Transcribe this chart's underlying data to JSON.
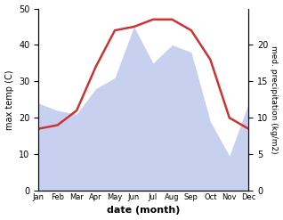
{
  "months": [
    "Jan",
    "Feb",
    "Mar",
    "Apr",
    "May",
    "Jun",
    "Jul",
    "Aug",
    "Sep",
    "Oct",
    "Nov",
    "Dec"
  ],
  "temperature": [
    17,
    18,
    22,
    34,
    44,
    45,
    47,
    47,
    44,
    36,
    20,
    17
  ],
  "precipitation_left_scale": [
    24,
    22,
    21,
    28,
    31,
    45,
    35,
    40,
    38,
    19,
    9.5,
    24
  ],
  "temp_color": "#cc3333",
  "precip_fill_color": "#c8d0f0",
  "temp_ylim": [
    0,
    50
  ],
  "precip_ylim": [
    0,
    25
  ],
  "temp_yticks": [
    0,
    10,
    20,
    30,
    40,
    50
  ],
  "precip_yticks": [
    0,
    5,
    10,
    15,
    20
  ],
  "xlabel": "date (month)",
  "ylabel_left": "max temp (C)",
  "ylabel_right": "med. precipitation (kg/m2)",
  "figsize": [
    3.18,
    2.47
  ],
  "dpi": 100
}
